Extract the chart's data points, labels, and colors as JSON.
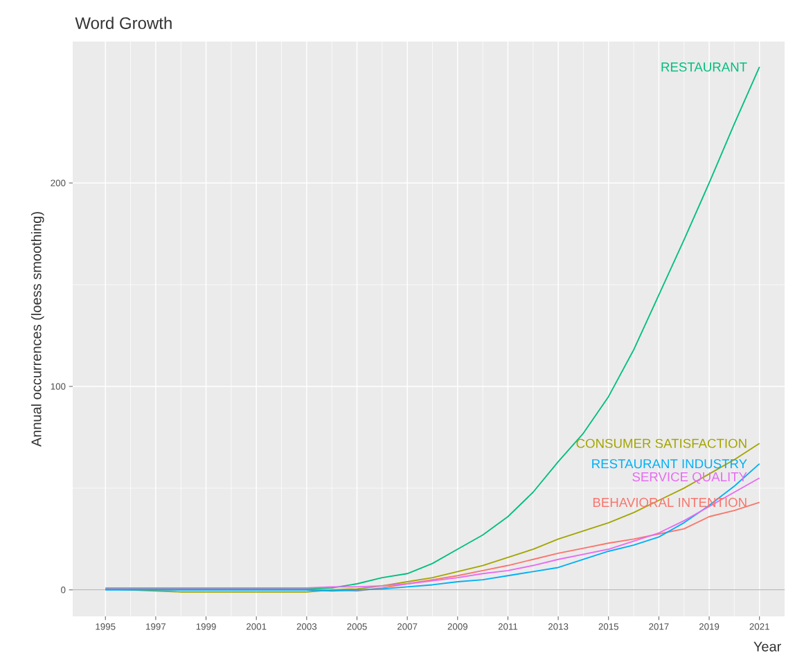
{
  "chart_data": {
    "type": "line",
    "title": "Word Growth",
    "xlabel": "Year",
    "ylabel": "Annual occurrences (loess smoothing)",
    "x": [
      1995,
      1996,
      1997,
      1998,
      1999,
      2000,
      2001,
      2002,
      2003,
      2004,
      2005,
      2006,
      2007,
      2008,
      2009,
      2010,
      2011,
      2012,
      2013,
      2014,
      2015,
      2016,
      2017,
      2018,
      2019,
      2020,
      2021
    ],
    "series": [
      {
        "name": "BEHAVIORAL INTENTION",
        "color": "#f8766d",
        "values": [
          null,
          null,
          null,
          null,
          null,
          null,
          null,
          null,
          0,
          0,
          -0.5,
          1,
          3,
          5,
          7,
          9.5,
          12,
          15,
          18,
          20.5,
          23,
          25,
          27.5,
          30,
          36,
          39,
          43
        ]
      },
      {
        "name": "CONSUMER SATISFACTION",
        "color": "#a3a500",
        "values": [
          0.5,
          0,
          -0.5,
          -1,
          -1,
          -1,
          -1,
          -1,
          -1,
          0,
          0.5,
          2,
          4,
          6,
          9,
          12,
          16,
          20,
          25,
          29,
          33,
          38,
          44,
          50,
          57,
          64,
          72
        ]
      },
      {
        "name": "RESTAURANT",
        "color": "#00bf7d",
        "values": [
          0.5,
          0.5,
          0.5,
          0.5,
          0.5,
          0.5,
          0.5,
          0.5,
          0.5,
          1,
          3,
          6,
          8,
          13,
          20,
          27,
          36,
          48,
          63,
          77,
          95,
          118,
          145,
          172,
          200,
          229,
          257
        ]
      },
      {
        "name": "RESTAURANT INDUSTRY",
        "color": "#00b0f6",
        "values": [
          0,
          0,
          0,
          0,
          0,
          0,
          0,
          0,
          0,
          -0.5,
          0,
          0.5,
          1.5,
          2.5,
          4,
          5,
          7,
          9,
          11,
          15,
          19,
          22,
          26,
          33,
          41.5,
          51,
          62
        ]
      },
      {
        "name": "SERVICE QUALITY",
        "color": "#e76bf3",
        "values": [
          1,
          1,
          1,
          1,
          1,
          1,
          1,
          1,
          1,
          1.5,
          1.5,
          2,
          3,
          4.5,
          6,
          8,
          9.5,
          12,
          15,
          17.5,
          20,
          24,
          28,
          34,
          41,
          48,
          55
        ]
      }
    ],
    "xlim": [
      1993.7,
      2022
    ],
    "ylim": [
      -13,
      269.5
    ],
    "xticks": [
      1995,
      1997,
      1999,
      2001,
      2003,
      2005,
      2007,
      2009,
      2011,
      2013,
      2015,
      2017,
      2019,
      2021
    ],
    "yticks": [
      0,
      100,
      200
    ],
    "grid": true,
    "ref_lines": [
      {
        "axis": "y",
        "value": 0,
        "color": "#7f7f7f"
      }
    ]
  }
}
